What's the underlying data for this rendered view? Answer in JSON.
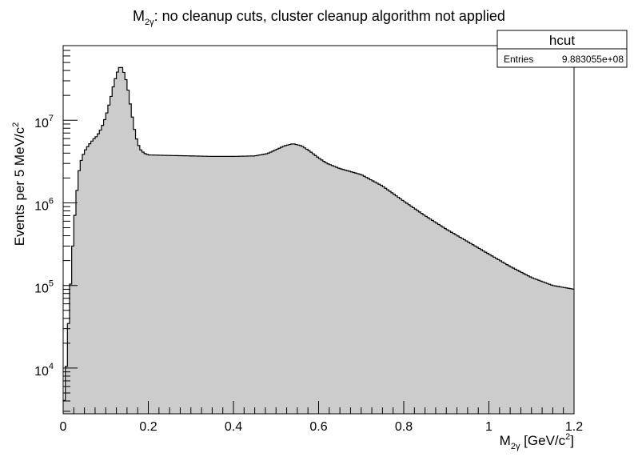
{
  "chart_data": {
    "type": "histogram",
    "title": {
      "main": "M",
      "sub": "2γ",
      "rest": ": no cleanup cuts, cluster cleanup algorithm not applied"
    },
    "xlabel": {
      "main": "M",
      "sub": "2γ",
      "rest": " [GeV/c",
      "sup": "2",
      "end": "]"
    },
    "ylabel": {
      "main": "Events per 5 MeV/c",
      "sup": "2"
    },
    "xlim": [
      0,
      1.2
    ],
    "ylim": [
      2800,
      80000000
    ],
    "log_y": true,
    "grid": false,
    "bin_width": 0.005,
    "fill_color": "#cccccc",
    "line_color": "#000000",
    "x_ticks": [
      "0",
      "0.2",
      "0.4",
      "0.6",
      "0.8",
      "1",
      "1.2"
    ],
    "x_tick_values": [
      0,
      0.2,
      0.4,
      0.6,
      0.8,
      1.0,
      1.2
    ],
    "y_tick_values": [
      10000,
      100000,
      1000000,
      10000000
    ],
    "y_tick_labels": [
      {
        "base": "10",
        "exp": "4"
      },
      {
        "base": "10",
        "exp": "5"
      },
      {
        "base": "10",
        "exp": "6"
      },
      {
        "base": "10",
        "exp": "7"
      }
    ],
    "anchors": [
      [
        0.0,
        3000
      ],
      [
        0.005,
        5500
      ],
      [
        0.01,
        20000
      ],
      [
        0.015,
        60000
      ],
      [
        0.02,
        180000
      ],
      [
        0.025,
        500000
      ],
      [
        0.03,
        1000000
      ],
      [
        0.035,
        2000000
      ],
      [
        0.04,
        3000000
      ],
      [
        0.05,
        4200000
      ],
      [
        0.06,
        5000000
      ],
      [
        0.07,
        5800000
      ],
      [
        0.08,
        6500000
      ],
      [
        0.09,
        8000000
      ],
      [
        0.1,
        11000000
      ],
      [
        0.11,
        17000000
      ],
      [
        0.12,
        29000000
      ],
      [
        0.13,
        42000000
      ],
      [
        0.135,
        45000000
      ],
      [
        0.14,
        42000000
      ],
      [
        0.15,
        28000000
      ],
      [
        0.16,
        13000000
      ],
      [
        0.17,
        6500000
      ],
      [
        0.18,
        4500000
      ],
      [
        0.19,
        4000000
      ],
      [
        0.2,
        3800000
      ],
      [
        0.25,
        3750000
      ],
      [
        0.3,
        3700000
      ],
      [
        0.35,
        3650000
      ],
      [
        0.4,
        3650000
      ],
      [
        0.45,
        3700000
      ],
      [
        0.48,
        3950000
      ],
      [
        0.5,
        4400000
      ],
      [
        0.52,
        4900000
      ],
      [
        0.54,
        5200000
      ],
      [
        0.56,
        4900000
      ],
      [
        0.58,
        4200000
      ],
      [
        0.6,
        3500000
      ],
      [
        0.62,
        3000000
      ],
      [
        0.65,
        2600000
      ],
      [
        0.7,
        2200000
      ],
      [
        0.75,
        1600000
      ],
      [
        0.8,
        1050000
      ],
      [
        0.85,
        700000
      ],
      [
        0.9,
        480000
      ],
      [
        0.95,
        340000
      ],
      [
        1.0,
        240000
      ],
      [
        1.05,
        170000
      ],
      [
        1.1,
        125000
      ],
      [
        1.15,
        100000
      ],
      [
        1.2,
        90000
      ]
    ]
  },
  "stats_box": {
    "title": "hcut",
    "entries_label": "Entries",
    "entries_value": "9.883055e+08"
  }
}
